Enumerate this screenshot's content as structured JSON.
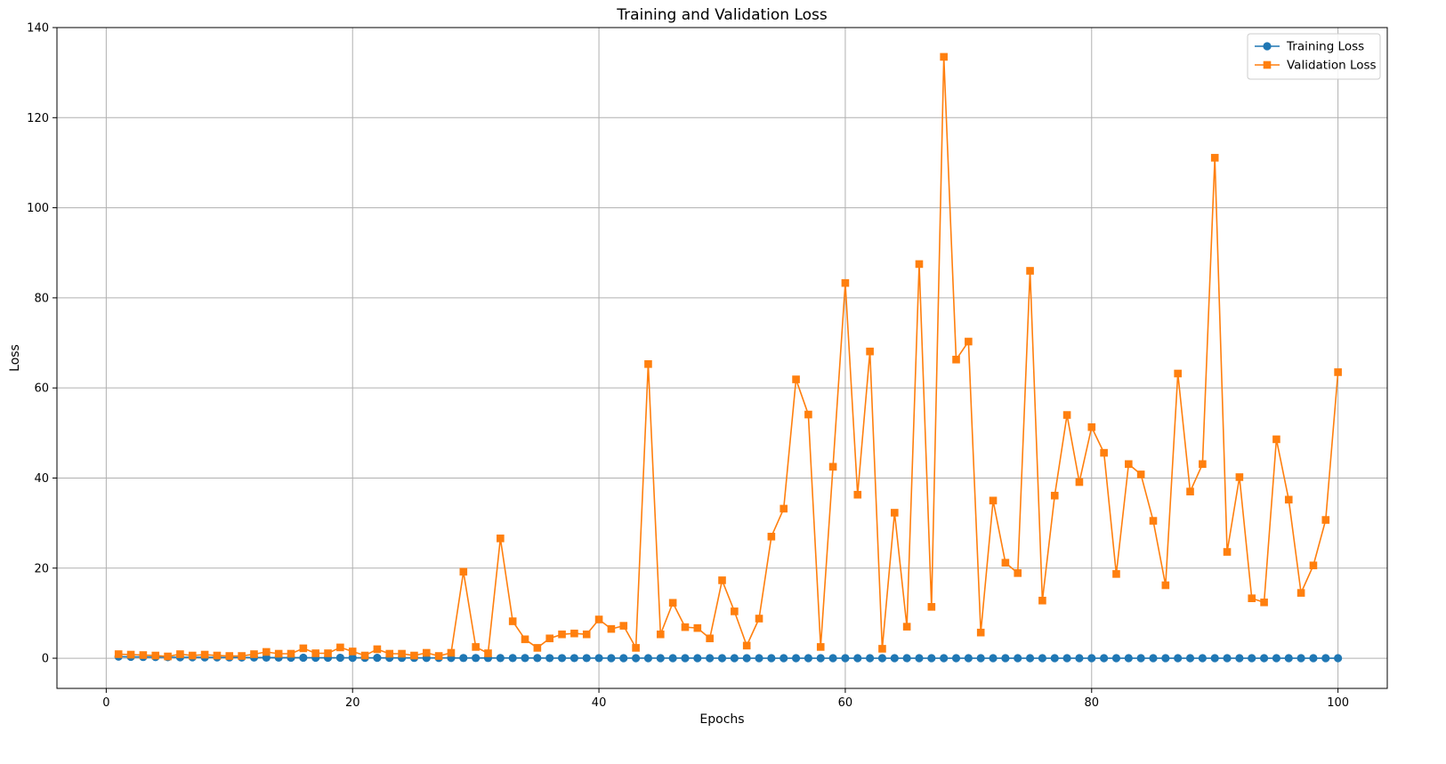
{
  "chart_data": {
    "type": "line",
    "title": "Training and Validation Loss",
    "xlabel": "Epochs",
    "ylabel": "Loss",
    "xlim": [
      -4,
      104
    ],
    "ylim": [
      -6.7,
      140
    ],
    "xticks": [
      0,
      20,
      40,
      60,
      80,
      100
    ],
    "yticks": [
      0,
      20,
      40,
      60,
      80,
      100,
      120,
      140
    ],
    "grid": true,
    "legend_position": "top-right",
    "series": [
      {
        "name": "Training Loss",
        "color": "#1f77b4",
        "marker": "circle",
        "x": [
          1,
          2,
          3,
          4,
          5,
          6,
          7,
          8,
          9,
          10,
          11,
          12,
          13,
          14,
          15,
          16,
          17,
          18,
          19,
          20,
          21,
          22,
          23,
          24,
          25,
          26,
          27,
          28,
          29,
          30,
          31,
          32,
          33,
          34,
          35,
          36,
          37,
          38,
          39,
          40,
          41,
          42,
          43,
          44,
          45,
          46,
          47,
          48,
          49,
          50,
          51,
          52,
          53,
          54,
          55,
          56,
          57,
          58,
          59,
          60,
          61,
          62,
          63,
          64,
          65,
          66,
          67,
          68,
          69,
          70,
          71,
          72,
          73,
          74,
          75,
          76,
          77,
          78,
          79,
          80,
          81,
          82,
          83,
          84,
          85,
          86,
          87,
          88,
          89,
          90,
          91,
          92,
          93,
          94,
          95,
          96,
          97,
          98,
          99,
          100
        ],
        "values": [
          0.35,
          0.3,
          0.27,
          0.25,
          0.23,
          0.21,
          0.2,
          0.19,
          0.18,
          0.17,
          0.16,
          0.15,
          0.14,
          0.13,
          0.12,
          0.12,
          0.11,
          0.1,
          0.1,
          0.09,
          0.09,
          0.08,
          0.08,
          0.07,
          0.07,
          0.06,
          0.06,
          0.06,
          0.05,
          0.05,
          0.05,
          0.04,
          0.04,
          0.04,
          0.04,
          0.03,
          0.03,
          0.03,
          0.03,
          0.03,
          0.02,
          0.02,
          0.02,
          0.02,
          0.02,
          0.02,
          0.02,
          0.02,
          0.02,
          0.01,
          0.01,
          0.01,
          0.01,
          0.01,
          0.01,
          0.01,
          0.01,
          0.01,
          0.01,
          0.01,
          0.01,
          0.01,
          0.01,
          0.01,
          0.01,
          0.01,
          0.01,
          0.01,
          0.01,
          0.01,
          0.01,
          0.01,
          0.01,
          0.01,
          0.01,
          0.01,
          0.01,
          0.01,
          0.01,
          0.01,
          0.01,
          0.01,
          0.01,
          0.01,
          0.01,
          0.01,
          0.01,
          0.01,
          0.01,
          0.01,
          0.01,
          0.01,
          0.01,
          0.01,
          0.01,
          0.01,
          0.01,
          0.01,
          0.01,
          0.01
        ]
      },
      {
        "name": "Validation Loss",
        "color": "#ff7f0e",
        "marker": "square",
        "x": [
          1,
          2,
          3,
          4,
          5,
          6,
          7,
          8,
          9,
          10,
          11,
          12,
          13,
          14,
          15,
          16,
          17,
          18,
          19,
          20,
          21,
          22,
          23,
          24,
          25,
          26,
          27,
          28,
          29,
          30,
          31,
          32,
          33,
          34,
          35,
          36,
          37,
          38,
          39,
          40,
          41,
          42,
          43,
          44,
          45,
          46,
          47,
          48,
          49,
          50,
          51,
          52,
          53,
          54,
          55,
          56,
          57,
          58,
          59,
          60,
          61,
          62,
          63,
          64,
          65,
          66,
          67,
          68,
          69,
          70,
          71,
          72,
          73,
          74,
          75,
          76,
          77,
          78,
          79,
          80,
          81,
          82,
          83,
          84,
          85,
          86,
          87,
          88,
          89,
          90,
          91,
          92,
          93,
          94,
          95,
          96,
          97,
          98,
          99,
          100
        ],
        "values": [
          0.9,
          0.8,
          0.7,
          0.6,
          0.4,
          0.9,
          0.6,
          0.8,
          0.6,
          0.5,
          0.5,
          0.9,
          1.4,
          1.0,
          1.0,
          2.2,
          1.1,
          1.1,
          2.4,
          1.5,
          0.6,
          2.0,
          1.0,
          1.0,
          0.6,
          1.2,
          0.5,
          1.2,
          19.2,
          2.5,
          1.1,
          26.6,
          8.2,
          4.2,
          2.3,
          4.4,
          5.3,
          5.5,
          5.3,
          8.6,
          6.5,
          7.2,
          2.3,
          65.3,
          5.3,
          12.3,
          6.9,
          6.7,
          4.4,
          17.3,
          10.4,
          2.8,
          8.8,
          27.0,
          33.2,
          61.9,
          54.1,
          2.5,
          42.5,
          83.3,
          36.3,
          68.1,
          2.1,
          32.3,
          7.0,
          87.5,
          11.4,
          133.5,
          66.3,
          70.3,
          5.7,
          35.0,
          21.2,
          18.9,
          86.0,
          12.8,
          36.1,
          54.0,
          39.1,
          51.3,
          45.6,
          18.7,
          43.1,
          40.8,
          30.5,
          16.2,
          63.2,
          37.0,
          43.1,
          111.1,
          23.6,
          40.2,
          13.3,
          12.4,
          48.6,
          35.2,
          14.5,
          20.6,
          30.7,
          63.5
        ]
      }
    ]
  }
}
